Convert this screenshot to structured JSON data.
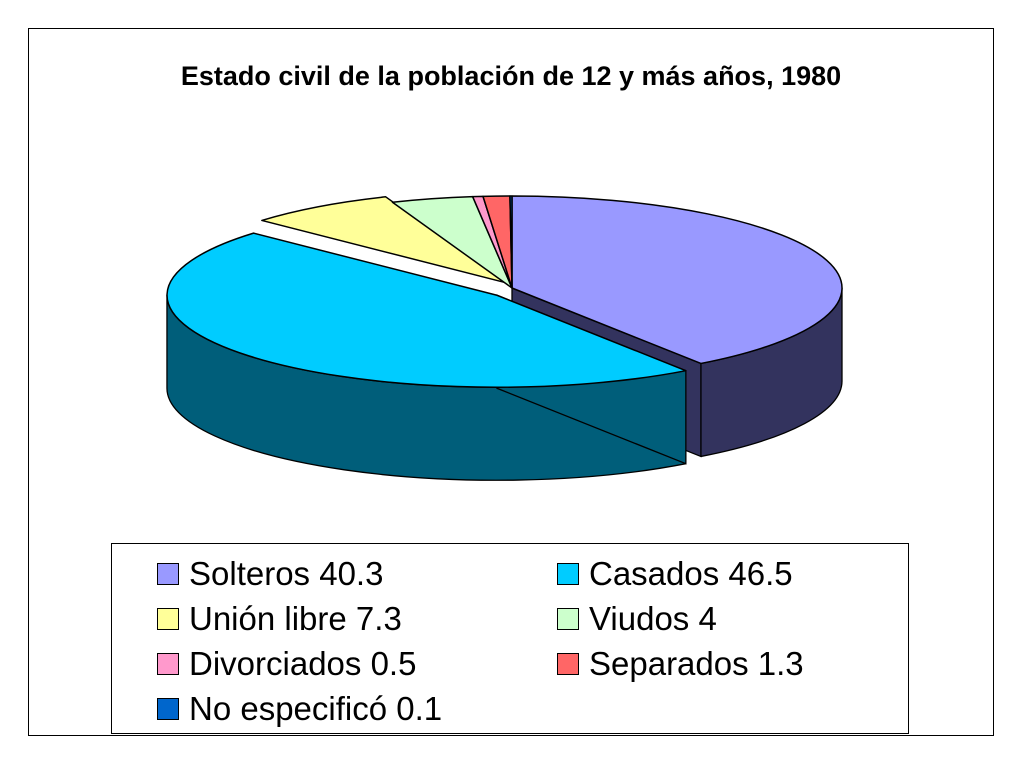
{
  "chart_data": {
    "type": "pie",
    "title": "Estado civil de la población de 12 y más años, 1980",
    "series": [
      {
        "label": "Solteros",
        "value": 40.3,
        "color": "#9999ff",
        "side": "#33335e",
        "legend_text": "Solteros 40.3"
      },
      {
        "label": "Casados",
        "value": 46.5,
        "color": "#00ccff",
        "side": "#005e7a",
        "legend_text": "Casados 46.5"
      },
      {
        "label": "Unión libre",
        "value": 7.3,
        "color": "#ffff99",
        "side": "#7a7a3e",
        "legend_text": "Unión libre 7.3"
      },
      {
        "label": "Viudos",
        "value": 4,
        "color": "#ccffcc",
        "side": "#5e7a5e",
        "legend_text": "Viudos 4"
      },
      {
        "label": "Divorciados",
        "value": 0.5,
        "color": "#ff99cc",
        "side": "#7a4a62",
        "legend_text": "Divorciados 0.5"
      },
      {
        "label": "Separados",
        "value": 1.3,
        "color": "#ff6666",
        "side": "#7a3030",
        "legend_text": "Separados 1.3"
      },
      {
        "label": "No especificó",
        "value": 0.1,
        "color": "#0066cc",
        "side": "#00305e",
        "legend_text": "No especificó 0.1"
      }
    ],
    "legend_position": "bottom",
    "legend_columns": 2
  }
}
